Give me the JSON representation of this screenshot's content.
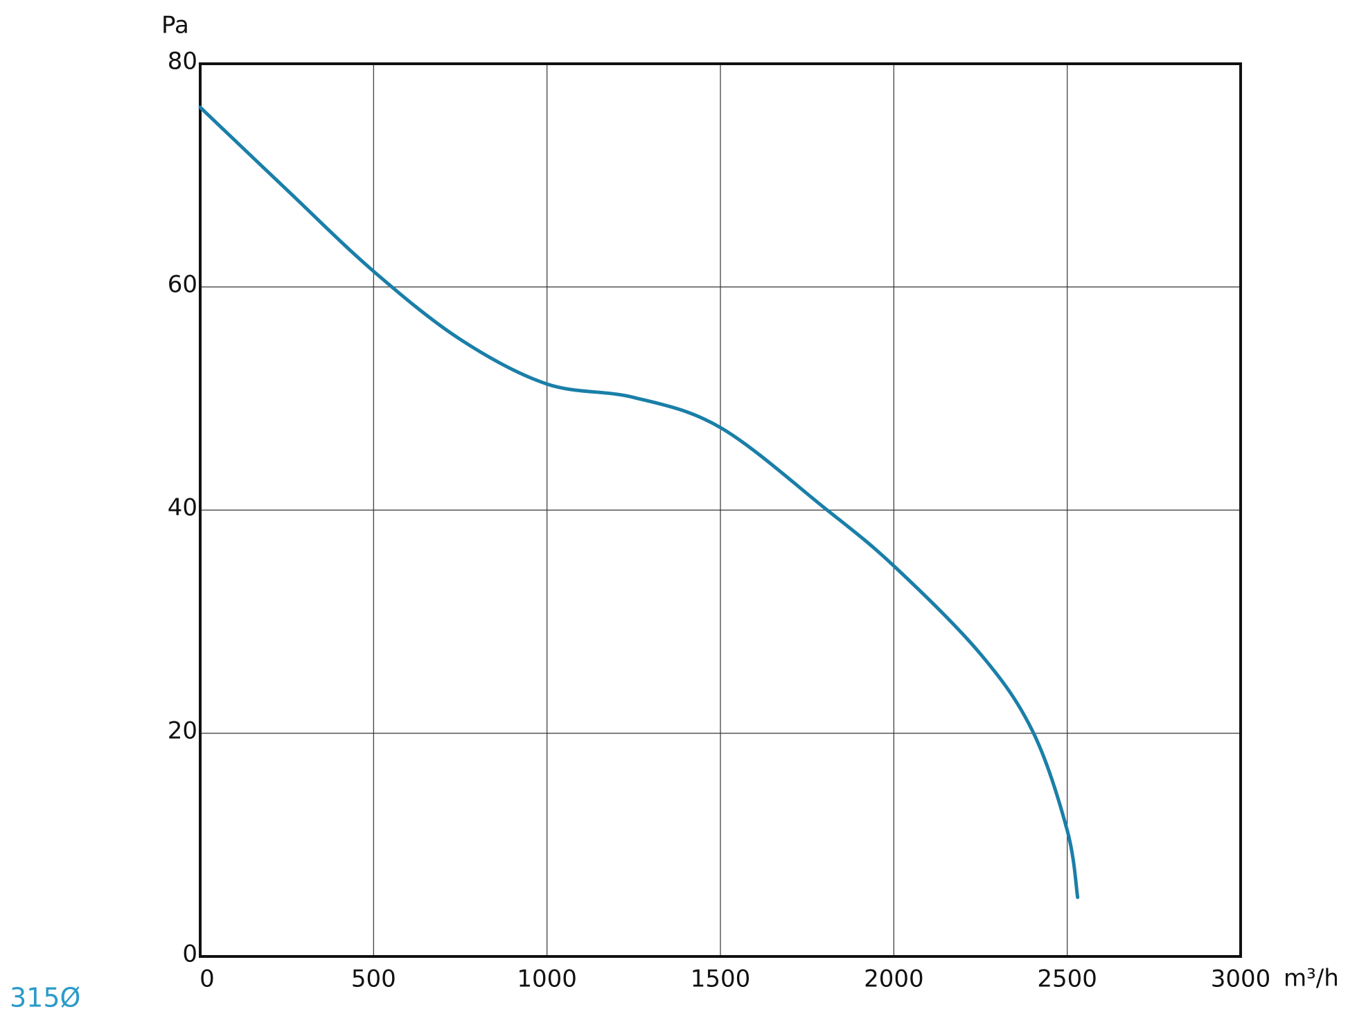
{
  "chart_data": {
    "type": "line",
    "y_label": "Pa",
    "x_label": "m³/h",
    "annotation": "315Ø",
    "x": [
      0,
      250,
      500,
      750,
      1000,
      1250,
      1500,
      1800,
      2000,
      2250,
      2400,
      2500,
      2530
    ],
    "series": [
      {
        "color": "#1a7fa8",
        "values": [
          76.1,
          68.7,
          61.4,
          55.3,
          51.3,
          50.1,
          47.4,
          40.2,
          35.0,
          27.1,
          20.2,
          11.3,
          5.3
        ]
      }
    ],
    "xlim": [
      0,
      3000
    ],
    "ylim": [
      0,
      80
    ],
    "xticks": [
      0,
      500,
      1000,
      1500,
      2000,
      2500,
      3000
    ],
    "yticks": [
      0,
      20,
      40,
      60,
      80
    ],
    "grid": true
  }
}
